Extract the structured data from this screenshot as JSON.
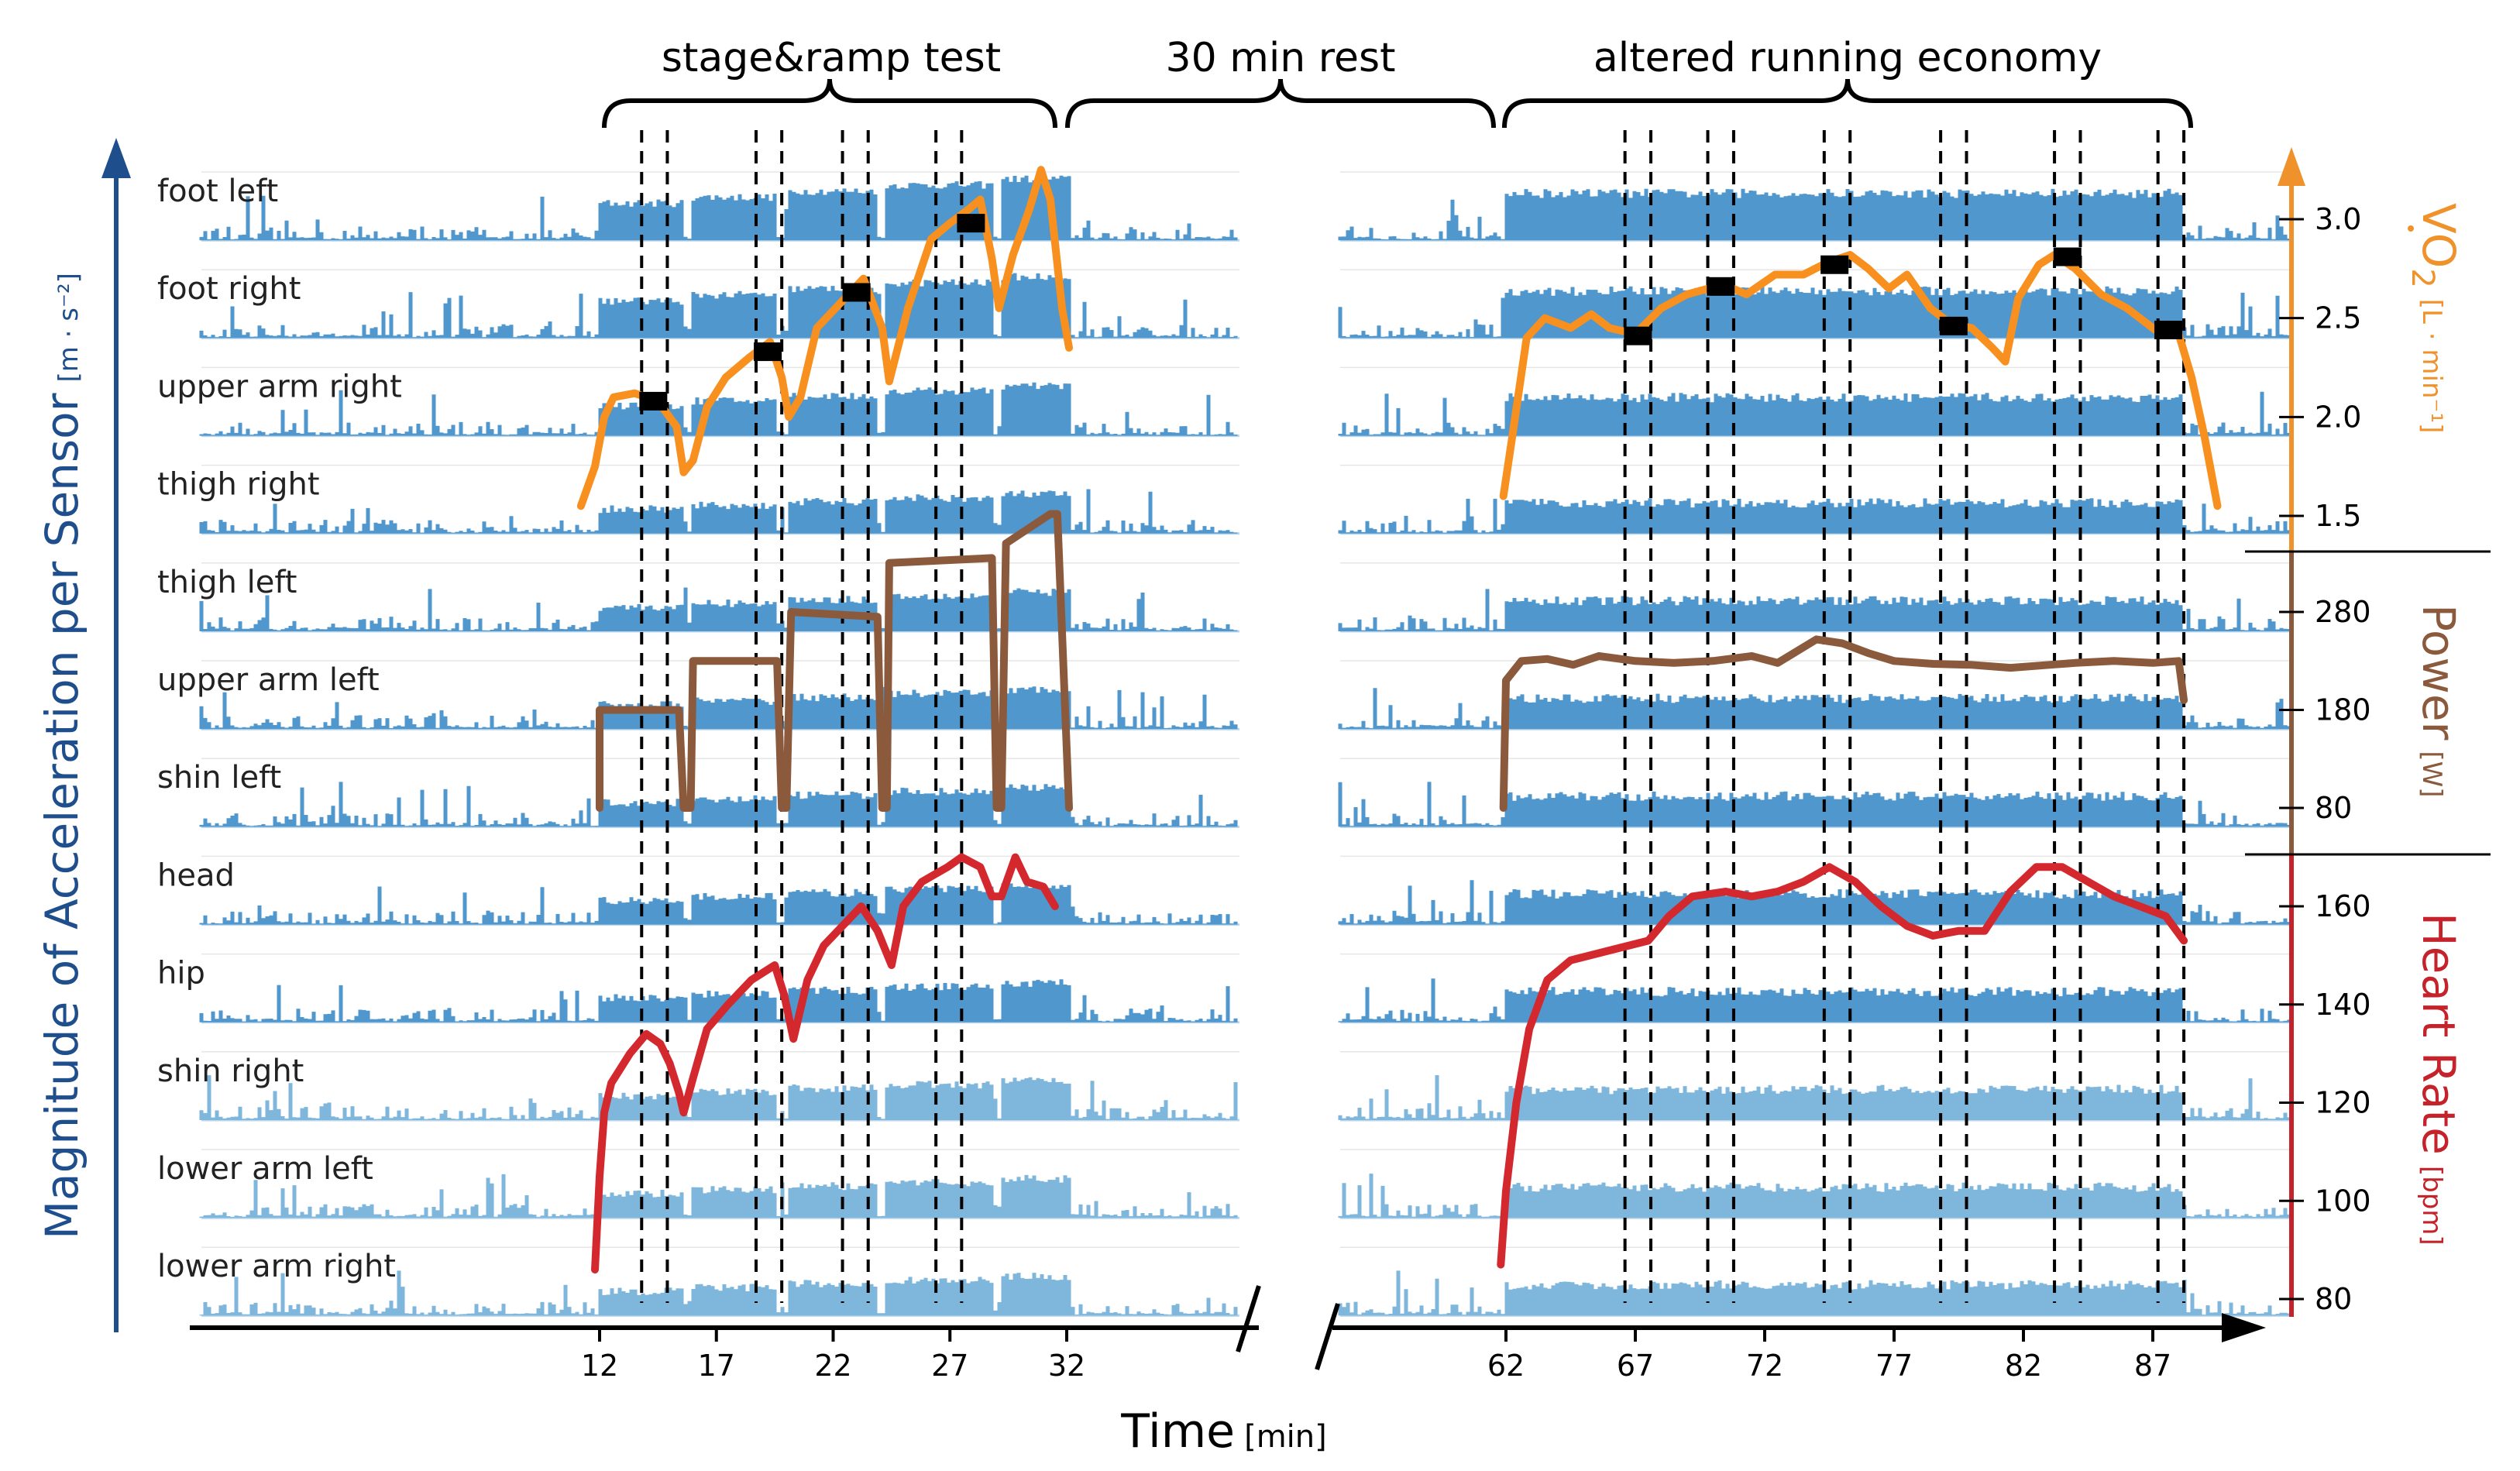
{
  "chart_data": {
    "type": "line",
    "phase_labels": [
      "stage&ramp test",
      "30 min rest",
      "altered running economy"
    ],
    "left_ylabel": "Magnitude of Acceleration per Sensor",
    "left_yunit": "[m · s⁻²]",
    "xlabel": "Time",
    "xunit": "[min]",
    "x_ticks_left": [
      12,
      17,
      22,
      27,
      32
    ],
    "x_ticks_right": [
      62,
      67,
      72,
      77,
      82,
      87
    ],
    "sensors": [
      "foot left",
      "foot right",
      "upper arm right",
      "thigh right",
      "thigh left",
      "upper arm left",
      "shin left",
      "head",
      "hip",
      "shin right",
      "lower arm left",
      "lower arm right"
    ],
    "segments_left_run": [
      [
        12.0,
        15.6
      ],
      [
        15.9,
        19.6
      ],
      [
        20.0,
        23.9
      ],
      [
        24.2,
        28.8
      ],
      [
        29.2,
        32.1
      ]
    ],
    "segments_right_run": [
      [
        62.0,
        88.2
      ]
    ],
    "dashed_lines": [
      13.8,
      14.9,
      18.7,
      19.8,
      22.4,
      23.5,
      26.4,
      27.5,
      66.6,
      67.6,
      69.8,
      70.8,
      74.3,
      75.3,
      78.8,
      79.8,
      83.2,
      84.2,
      87.2,
      88.2
    ],
    "axes": {
      "vo2": {
        "label": "VO",
        "sub": "2",
        "unit": "[L · min⁻¹]",
        "ticks": [
          3.0,
          2.5,
          2.0,
          1.5
        ],
        "range": [
          1.5,
          3.0
        ],
        "color": "#f0922b"
      },
      "power": {
        "label": "Power",
        "unit": "[W]",
        "ticks": [
          280,
          180,
          80
        ],
        "range": [
          80,
          280
        ],
        "color": "#8b5a3c"
      },
      "heart_rate": {
        "label": "Heart Rate",
        "unit": "[bpm]",
        "ticks": [
          160,
          140,
          120,
          100,
          80
        ],
        "range": [
          80,
          160
        ],
        "color": "#c4232b"
      }
    },
    "series": [
      {
        "name": "VO₂",
        "color": "#f7901e",
        "points": [
          [
            11.2,
            1.55
          ],
          [
            11.8,
            1.75
          ],
          [
            12.2,
            2.0
          ],
          [
            12.6,
            2.1
          ],
          [
            13.5,
            2.12
          ],
          [
            14.5,
            2.08
          ],
          [
            15.3,
            1.95
          ],
          [
            15.6,
            1.72
          ],
          [
            16.0,
            1.78
          ],
          [
            16.6,
            2.05
          ],
          [
            17.4,
            2.2
          ],
          [
            18.4,
            2.3
          ],
          [
            19.3,
            2.38
          ],
          [
            19.8,
            2.2
          ],
          [
            20.1,
            2.0
          ],
          [
            20.6,
            2.1
          ],
          [
            21.3,
            2.45
          ],
          [
            22.1,
            2.55
          ],
          [
            23.3,
            2.7
          ],
          [
            24.1,
            2.45
          ],
          [
            24.4,
            2.18
          ],
          [
            25.2,
            2.55
          ],
          [
            26.2,
            2.9
          ],
          [
            27.0,
            2.98
          ],
          [
            27.8,
            3.05
          ],
          [
            28.3,
            3.1
          ],
          [
            28.8,
            2.8
          ],
          [
            29.1,
            2.55
          ],
          [
            29.7,
            2.82
          ],
          [
            30.4,
            3.05
          ],
          [
            30.9,
            3.25
          ],
          [
            31.3,
            3.1
          ],
          [
            31.8,
            2.55
          ],
          [
            32.1,
            2.35
          ],
          [
            61.9,
            1.6
          ],
          [
            62.3,
            1.95
          ],
          [
            62.8,
            2.4
          ],
          [
            63.5,
            2.5
          ],
          [
            64.5,
            2.45
          ],
          [
            65.3,
            2.52
          ],
          [
            66.0,
            2.45
          ],
          [
            67.0,
            2.42
          ],
          [
            68.0,
            2.55
          ],
          [
            69.0,
            2.62
          ],
          [
            70.4,
            2.67
          ],
          [
            71.3,
            2.62
          ],
          [
            72.4,
            2.72
          ],
          [
            73.5,
            2.72
          ],
          [
            74.4,
            2.78
          ],
          [
            75.3,
            2.82
          ],
          [
            76.0,
            2.75
          ],
          [
            76.8,
            2.65
          ],
          [
            77.5,
            2.72
          ],
          [
            78.4,
            2.55
          ],
          [
            79.2,
            2.47
          ],
          [
            80.0,
            2.45
          ],
          [
            80.8,
            2.35
          ],
          [
            81.3,
            2.28
          ],
          [
            81.8,
            2.6
          ],
          [
            82.6,
            2.77
          ],
          [
            83.2,
            2.82
          ],
          [
            84.0,
            2.75
          ],
          [
            85.0,
            2.62
          ],
          [
            86.0,
            2.55
          ],
          [
            87.1,
            2.44
          ],
          [
            88.0,
            2.42
          ],
          [
            88.5,
            2.2
          ],
          [
            89.0,
            1.9
          ],
          [
            89.5,
            1.55
          ]
        ]
      },
      {
        "name": "Power",
        "color": "#8b5a3c",
        "points": [
          [
            12.0,
            80
          ],
          [
            12.0,
            180
          ],
          [
            15.4,
            180
          ],
          [
            15.6,
            80
          ],
          [
            15.9,
            80
          ],
          [
            16.0,
            230
          ],
          [
            19.6,
            230
          ],
          [
            19.8,
            80
          ],
          [
            20.0,
            80
          ],
          [
            20.2,
            280
          ],
          [
            23.9,
            275
          ],
          [
            24.1,
            80
          ],
          [
            24.3,
            80
          ],
          [
            24.4,
            330
          ],
          [
            28.8,
            335
          ],
          [
            29.0,
            80
          ],
          [
            29.2,
            80
          ],
          [
            29.4,
            350
          ],
          [
            31.3,
            380
          ],
          [
            31.6,
            380
          ],
          [
            32.1,
            80
          ],
          [
            61.9,
            80
          ],
          [
            62.0,
            210
          ],
          [
            62.6,
            230
          ],
          [
            63.6,
            232
          ],
          [
            64.6,
            226
          ],
          [
            65.6,
            235
          ],
          [
            67.0,
            230
          ],
          [
            68.5,
            228
          ],
          [
            70.0,
            230
          ],
          [
            71.5,
            235
          ],
          [
            72.5,
            228
          ],
          [
            74.0,
            252
          ],
          [
            75.0,
            248
          ],
          [
            76.0,
            238
          ],
          [
            77.0,
            230
          ],
          [
            78.5,
            227
          ],
          [
            80.0,
            226
          ],
          [
            81.5,
            223
          ],
          [
            83.0,
            226
          ],
          [
            84.0,
            228
          ],
          [
            85.5,
            230
          ],
          [
            87.0,
            228
          ],
          [
            88.0,
            230
          ],
          [
            88.2,
            190
          ]
        ]
      },
      {
        "name": "Heart Rate",
        "color": "#d4282f",
        "points": [
          [
            11.8,
            86
          ],
          [
            12.0,
            105
          ],
          [
            12.2,
            118
          ],
          [
            12.5,
            124
          ],
          [
            13.3,
            130
          ],
          [
            14.0,
            134
          ],
          [
            14.6,
            132
          ],
          [
            15.0,
            128
          ],
          [
            15.4,
            122
          ],
          [
            15.6,
            118
          ],
          [
            16.0,
            125
          ],
          [
            16.6,
            135
          ],
          [
            17.5,
            140
          ],
          [
            18.5,
            145
          ],
          [
            19.5,
            148
          ],
          [
            19.9,
            142
          ],
          [
            20.3,
            133
          ],
          [
            20.9,
            145
          ],
          [
            21.6,
            152
          ],
          [
            22.4,
            156
          ],
          [
            23.2,
            160
          ],
          [
            23.9,
            155
          ],
          [
            24.5,
            148
          ],
          [
            25.0,
            160
          ],
          [
            25.8,
            165
          ],
          [
            26.9,
            168
          ],
          [
            27.5,
            170
          ],
          [
            28.3,
            168
          ],
          [
            28.8,
            162
          ],
          [
            29.2,
            162
          ],
          [
            29.8,
            170
          ],
          [
            30.3,
            165
          ],
          [
            31.0,
            164
          ],
          [
            31.5,
            160
          ],
          [
            61.8,
            87
          ],
          [
            62.0,
            102
          ],
          [
            62.4,
            120
          ],
          [
            62.9,
            135
          ],
          [
            63.6,
            145
          ],
          [
            64.5,
            149
          ],
          [
            66.0,
            151
          ],
          [
            67.5,
            153
          ],
          [
            68.3,
            158
          ],
          [
            69.2,
            162
          ],
          [
            70.5,
            163
          ],
          [
            71.5,
            162
          ],
          [
            72.5,
            163
          ],
          [
            73.5,
            165
          ],
          [
            74.5,
            168
          ],
          [
            75.5,
            165
          ],
          [
            76.5,
            160
          ],
          [
            77.5,
            156
          ],
          [
            78.5,
            154
          ],
          [
            79.5,
            155
          ],
          [
            80.5,
            155
          ],
          [
            81.5,
            163
          ],
          [
            82.5,
            168
          ],
          [
            83.5,
            168
          ],
          [
            84.5,
            165
          ],
          [
            85.5,
            162
          ],
          [
            86.5,
            160
          ],
          [
            87.5,
            158
          ],
          [
            88.2,
            153
          ]
        ]
      }
    ],
    "vo2_markers": [
      [
        14.3,
        2.08
      ],
      [
        19.2,
        2.33
      ],
      [
        23.0,
        2.63
      ],
      [
        27.9,
        2.98
      ],
      [
        67.1,
        2.41
      ],
      [
        70.3,
        2.66
      ],
      [
        74.7,
        2.77
      ],
      [
        79.3,
        2.46
      ],
      [
        83.7,
        2.81
      ],
      [
        87.6,
        2.44
      ]
    ]
  }
}
